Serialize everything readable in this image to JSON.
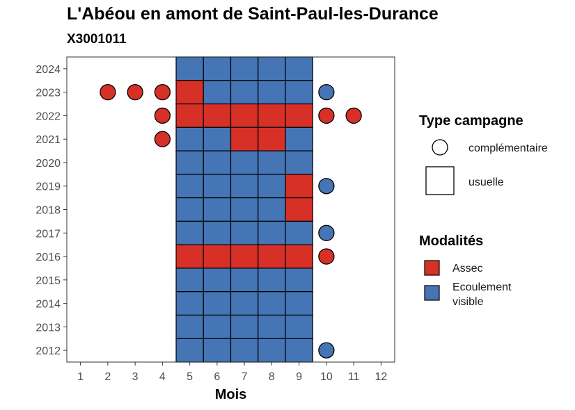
{
  "title": "L'Abéou en amont de Saint-Paul-les-Durance",
  "subtitle": "X3001011",
  "colors": {
    "assec": "#D73027",
    "ecoulement": "#4575B4"
  },
  "chart_data": {
    "type": "heatmap",
    "xlabel": "Mois",
    "ylabel": "",
    "x_ticks": [
      "1",
      "2",
      "3",
      "4",
      "5",
      "6",
      "7",
      "8",
      "9",
      "10",
      "11",
      "12"
    ],
    "y_ticks": [
      "2012",
      "2013",
      "2014",
      "2015",
      "2016",
      "2017",
      "2018",
      "2019",
      "2020",
      "2021",
      "2022",
      "2023",
      "2024"
    ],
    "xlim": [
      0.5,
      12.5
    ],
    "ylim": [
      2011.5,
      2024.5
    ],
    "legends": [
      {
        "title": "Type campagne",
        "entries": [
          {
            "label": "complémentaire",
            "shape": "circle"
          },
          {
            "label": "usuelle",
            "shape": "square"
          }
        ]
      },
      {
        "title": "Modalités",
        "entries": [
          {
            "label": "Assec",
            "key": "assec"
          },
          {
            "label": "Ecoulement\nvisible",
            "key": "ecoulement"
          }
        ]
      }
    ],
    "observations": [
      {
        "year": 2024,
        "month": 5,
        "type": "usuelle",
        "modalite": "ecoulement"
      },
      {
        "year": 2024,
        "month": 6,
        "type": "usuelle",
        "modalite": "ecoulement"
      },
      {
        "year": 2024,
        "month": 7,
        "type": "usuelle",
        "modalite": "ecoulement"
      },
      {
        "year": 2024,
        "month": 8,
        "type": "usuelle",
        "modalite": "ecoulement"
      },
      {
        "year": 2024,
        "month": 9,
        "type": "usuelle",
        "modalite": "ecoulement"
      },
      {
        "year": 2023,
        "month": 2,
        "type": "complementaire",
        "modalite": "assec"
      },
      {
        "year": 2023,
        "month": 3,
        "type": "complementaire",
        "modalite": "assec"
      },
      {
        "year": 2023,
        "month": 4,
        "type": "complementaire",
        "modalite": "assec"
      },
      {
        "year": 2023,
        "month": 5,
        "type": "usuelle",
        "modalite": "assec"
      },
      {
        "year": 2023,
        "month": 6,
        "type": "usuelle",
        "modalite": "ecoulement"
      },
      {
        "year": 2023,
        "month": 7,
        "type": "usuelle",
        "modalite": "ecoulement"
      },
      {
        "year": 2023,
        "month": 8,
        "type": "usuelle",
        "modalite": "ecoulement"
      },
      {
        "year": 2023,
        "month": 9,
        "type": "usuelle",
        "modalite": "ecoulement"
      },
      {
        "year": 2023,
        "month": 10,
        "type": "complementaire",
        "modalite": "ecoulement"
      },
      {
        "year": 2022,
        "month": 4,
        "type": "complementaire",
        "modalite": "assec"
      },
      {
        "year": 2022,
        "month": 5,
        "type": "usuelle",
        "modalite": "assec"
      },
      {
        "year": 2022,
        "month": 6,
        "type": "usuelle",
        "modalite": "assec"
      },
      {
        "year": 2022,
        "month": 7,
        "type": "usuelle",
        "modalite": "assec"
      },
      {
        "year": 2022,
        "month": 8,
        "type": "usuelle",
        "modalite": "assec"
      },
      {
        "year": 2022,
        "month": 9,
        "type": "usuelle",
        "modalite": "assec"
      },
      {
        "year": 2022,
        "month": 10,
        "type": "complementaire",
        "modalite": "assec"
      },
      {
        "year": 2022,
        "month": 11,
        "type": "complementaire",
        "modalite": "assec"
      },
      {
        "year": 2021,
        "month": 4,
        "type": "complementaire",
        "modalite": "assec"
      },
      {
        "year": 2021,
        "month": 5,
        "type": "usuelle",
        "modalite": "ecoulement"
      },
      {
        "year": 2021,
        "month": 6,
        "type": "usuelle",
        "modalite": "ecoulement"
      },
      {
        "year": 2021,
        "month": 7,
        "type": "usuelle",
        "modalite": "assec"
      },
      {
        "year": 2021,
        "month": 8,
        "type": "usuelle",
        "modalite": "assec"
      },
      {
        "year": 2021,
        "month": 9,
        "type": "usuelle",
        "modalite": "ecoulement"
      },
      {
        "year": 2020,
        "month": 5,
        "type": "usuelle",
        "modalite": "ecoulement"
      },
      {
        "year": 2020,
        "month": 6,
        "type": "usuelle",
        "modalite": "ecoulement"
      },
      {
        "year": 2020,
        "month": 7,
        "type": "usuelle",
        "modalite": "ecoulement"
      },
      {
        "year": 2020,
        "month": 8,
        "type": "usuelle",
        "modalite": "ecoulement"
      },
      {
        "year": 2020,
        "month": 9,
        "type": "usuelle",
        "modalite": "ecoulement"
      },
      {
        "year": 2019,
        "month": 5,
        "type": "usuelle",
        "modalite": "ecoulement"
      },
      {
        "year": 2019,
        "month": 6,
        "type": "usuelle",
        "modalite": "ecoulement"
      },
      {
        "year": 2019,
        "month": 7,
        "type": "usuelle",
        "modalite": "ecoulement"
      },
      {
        "year": 2019,
        "month": 8,
        "type": "usuelle",
        "modalite": "ecoulement"
      },
      {
        "year": 2019,
        "month": 9,
        "type": "usuelle",
        "modalite": "assec"
      },
      {
        "year": 2019,
        "month": 10,
        "type": "complementaire",
        "modalite": "ecoulement"
      },
      {
        "year": 2018,
        "month": 5,
        "type": "usuelle",
        "modalite": "ecoulement"
      },
      {
        "year": 2018,
        "month": 6,
        "type": "usuelle",
        "modalite": "ecoulement"
      },
      {
        "year": 2018,
        "month": 7,
        "type": "usuelle",
        "modalite": "ecoulement"
      },
      {
        "year": 2018,
        "month": 8,
        "type": "usuelle",
        "modalite": "ecoulement"
      },
      {
        "year": 2018,
        "month": 9,
        "type": "usuelle",
        "modalite": "assec"
      },
      {
        "year": 2017,
        "month": 5,
        "type": "usuelle",
        "modalite": "ecoulement"
      },
      {
        "year": 2017,
        "month": 6,
        "type": "usuelle",
        "modalite": "ecoulement"
      },
      {
        "year": 2017,
        "month": 7,
        "type": "usuelle",
        "modalite": "ecoulement"
      },
      {
        "year": 2017,
        "month": 8,
        "type": "usuelle",
        "modalite": "ecoulement"
      },
      {
        "year": 2017,
        "month": 9,
        "type": "usuelle",
        "modalite": "ecoulement"
      },
      {
        "year": 2017,
        "month": 10,
        "type": "complementaire",
        "modalite": "ecoulement"
      },
      {
        "year": 2016,
        "month": 5,
        "type": "usuelle",
        "modalite": "assec"
      },
      {
        "year": 2016,
        "month": 6,
        "type": "usuelle",
        "modalite": "assec"
      },
      {
        "year": 2016,
        "month": 7,
        "type": "usuelle",
        "modalite": "assec"
      },
      {
        "year": 2016,
        "month": 8,
        "type": "usuelle",
        "modalite": "assec"
      },
      {
        "year": 2016,
        "month": 9,
        "type": "usuelle",
        "modalite": "assec"
      },
      {
        "year": 2016,
        "month": 10,
        "type": "complementaire",
        "modalite": "assec"
      },
      {
        "year": 2015,
        "month": 5,
        "type": "usuelle",
        "modalite": "ecoulement"
      },
      {
        "year": 2015,
        "month": 6,
        "type": "usuelle",
        "modalite": "ecoulement"
      },
      {
        "year": 2015,
        "month": 7,
        "type": "usuelle",
        "modalite": "ecoulement"
      },
      {
        "year": 2015,
        "month": 8,
        "type": "usuelle",
        "modalite": "ecoulement"
      },
      {
        "year": 2015,
        "month": 9,
        "type": "usuelle",
        "modalite": "ecoulement"
      },
      {
        "year": 2014,
        "month": 5,
        "type": "usuelle",
        "modalite": "ecoulement"
      },
      {
        "year": 2014,
        "month": 6,
        "type": "usuelle",
        "modalite": "ecoulement"
      },
      {
        "year": 2014,
        "month": 7,
        "type": "usuelle",
        "modalite": "ecoulement"
      },
      {
        "year": 2014,
        "month": 8,
        "type": "usuelle",
        "modalite": "ecoulement"
      },
      {
        "year": 2014,
        "month": 9,
        "type": "usuelle",
        "modalite": "ecoulement"
      },
      {
        "year": 2013,
        "month": 5,
        "type": "usuelle",
        "modalite": "ecoulement"
      },
      {
        "year": 2013,
        "month": 6,
        "type": "usuelle",
        "modalite": "ecoulement"
      },
      {
        "year": 2013,
        "month": 7,
        "type": "usuelle",
        "modalite": "ecoulement"
      },
      {
        "year": 2013,
        "month": 8,
        "type": "usuelle",
        "modalite": "ecoulement"
      },
      {
        "year": 2013,
        "month": 9,
        "type": "usuelle",
        "modalite": "ecoulement"
      },
      {
        "year": 2012,
        "month": 5,
        "type": "usuelle",
        "modalite": "ecoulement"
      },
      {
        "year": 2012,
        "month": 6,
        "type": "usuelle",
        "modalite": "ecoulement"
      },
      {
        "year": 2012,
        "month": 7,
        "type": "usuelle",
        "modalite": "ecoulement"
      },
      {
        "year": 2012,
        "month": 8,
        "type": "usuelle",
        "modalite": "ecoulement"
      },
      {
        "year": 2012,
        "month": 9,
        "type": "usuelle",
        "modalite": "ecoulement"
      },
      {
        "year": 2012,
        "month": 10,
        "type": "complementaire",
        "modalite": "ecoulement"
      }
    ]
  }
}
